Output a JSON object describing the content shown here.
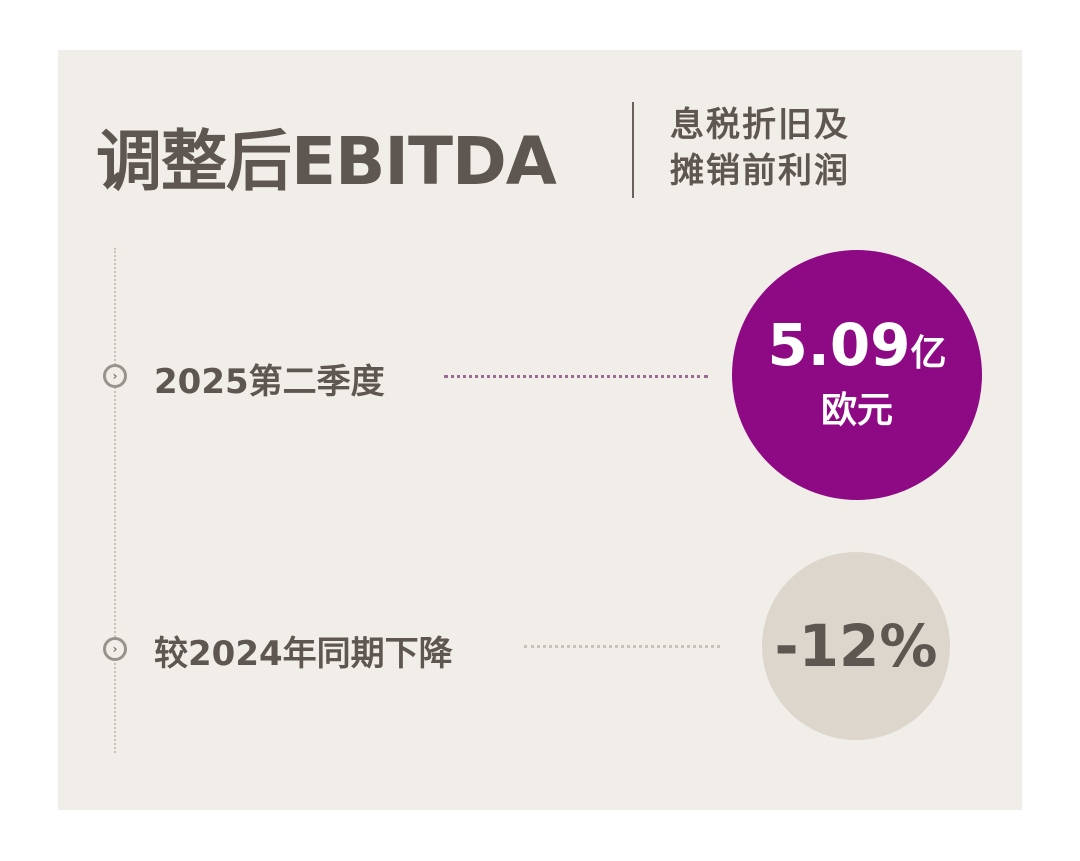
{
  "header": {
    "title": "调整后EBITDA",
    "subtitle_line1": "息税折旧及",
    "subtitle_line2": "摊销前利润"
  },
  "rows": [
    {
      "label": "2025第二季度",
      "value": "5.09",
      "unit": "亿",
      "currency": "欧元",
      "icon": "chevron-right-circle-icon"
    },
    {
      "label": "较2024年同期下降",
      "value": "-12%",
      "icon": "chevron-right-circle-icon"
    }
  ],
  "colors": {
    "background": "#f1eee9",
    "text": "#5e5650",
    "accent": "#8e0a85",
    "neutral_circle": "#dcd6cc"
  }
}
